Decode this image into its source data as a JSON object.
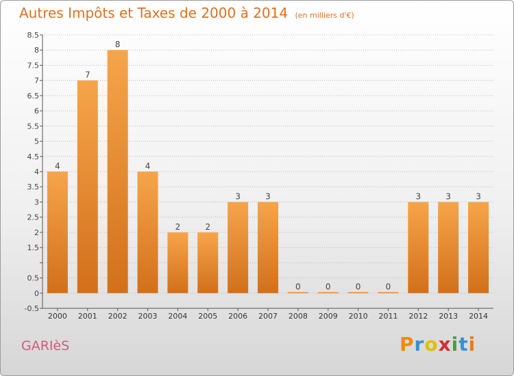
{
  "header": {
    "title": "Autres Impôts et Taxes de 2000 à 2014",
    "unit": "(en milliers d'€)"
  },
  "footer": {
    "commune": "GARIèS"
  },
  "logo": {
    "letters": [
      "P",
      "r",
      "o",
      "x",
      "i",
      "t",
      "i"
    ],
    "colors": [
      "#f08c00",
      "#3a8fd0",
      "#e0c000",
      "#d03030",
      "#4aa040",
      "#3a8fd0",
      "#e08020"
    ]
  },
  "colors": {
    "bar_top": "#f6a54a",
    "bar_bottom": "#d2701a",
    "title": "#e07020",
    "commune": "#d05a7a",
    "axis": "#555555",
    "grid": "#bbbbbb"
  },
  "chart_data": {
    "type": "bar",
    "categories": [
      "2000",
      "2001",
      "2002",
      "2003",
      "2004",
      "2005",
      "2006",
      "2007",
      "2008",
      "2009",
      "2010",
      "2011",
      "2012",
      "2013",
      "2014"
    ],
    "values": [
      4,
      7,
      8,
      4,
      2,
      2,
      3,
      3,
      0,
      0,
      0,
      0,
      3,
      3,
      3
    ],
    "value_labels": [
      "4",
      "7",
      "8",
      "4",
      "2",
      "2",
      "3",
      "3",
      "0",
      "0",
      "0",
      "0",
      "3",
      "3",
      "3"
    ],
    "yticks": [
      -0.5,
      0,
      0.5,
      1,
      1.5,
      2,
      2.5,
      3,
      3.5,
      4,
      4.5,
      5,
      5.5,
      6,
      6.5,
      7,
      7.5,
      8,
      8.5
    ],
    "ytick_labels": [
      "-0.5",
      "0",
      "0.5",
      "",
      "1.5",
      "2",
      "2.5",
      "3",
      "3.5",
      "4",
      "4.5",
      "5",
      "5.5",
      "6",
      "6.5",
      "7",
      "7.5",
      "8",
      "8.5"
    ],
    "ylim": [
      -0.5,
      8.5
    ],
    "title": "Autres Impôts et Taxes de 2000 à 2014",
    "xlabel": "",
    "ylabel": "",
    "grid": true
  }
}
